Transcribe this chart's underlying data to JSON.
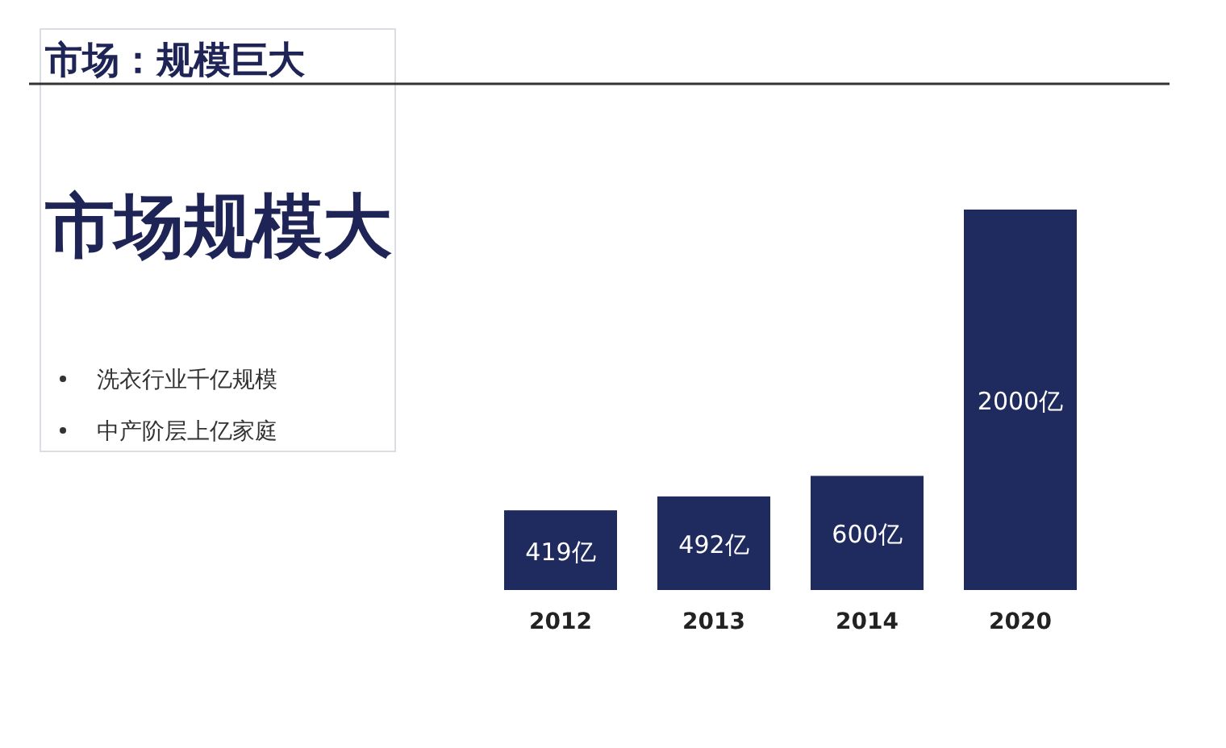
{
  "chart_data": {
    "type": "bar",
    "title": "市场：规模巨大",
    "subtitle": "市场规模大",
    "categories": [
      "2012",
      "2013",
      "2014",
      "2020"
    ],
    "values": [
      419,
      492,
      600,
      2000
    ],
    "value_labels": [
      "419亿",
      "492亿",
      "600亿",
      "2000亿"
    ],
    "color": "#1f2a5e",
    "annotations": [
      "洗衣行业千亿规模",
      "中产阶层上亿家庭"
    ]
  }
}
